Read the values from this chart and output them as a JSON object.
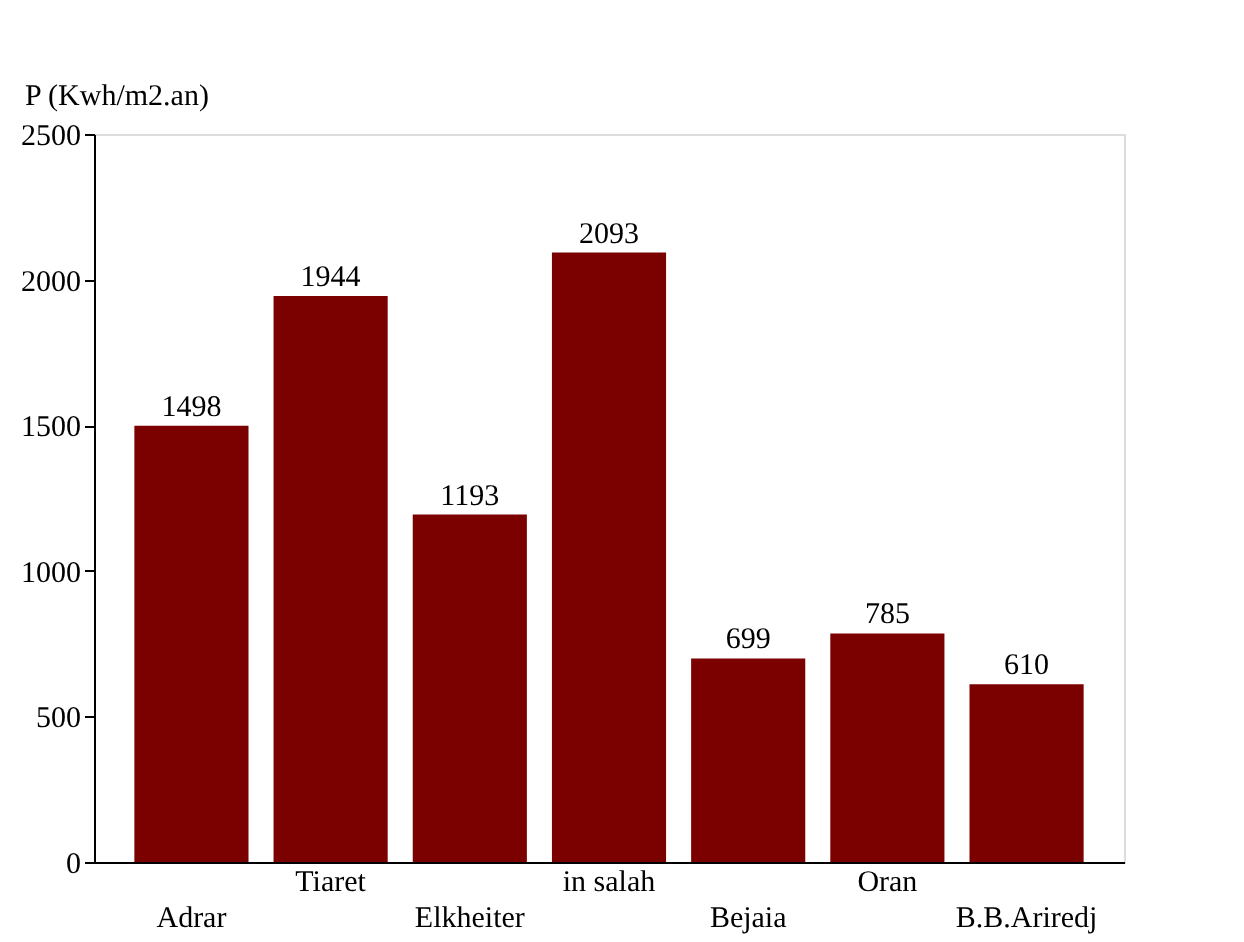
{
  "chart_data": {
    "type": "bar",
    "ylabel": "P (Kwh/m2.an)",
    "categories": [
      "Adrar",
      "Tiaret",
      "Elkheiter",
      "in salah",
      "Bejaia",
      "Oran",
      "B.B.Ariredj"
    ],
    "values": [
      1498,
      1944,
      1193,
      2093,
      699,
      785,
      610
    ],
    "color": "#7b0000",
    "ylim": [
      0,
      2500
    ],
    "yticks": [
      0,
      500,
      1000,
      1500,
      2000,
      2500
    ],
    "data_labels": true,
    "grid": false
  }
}
